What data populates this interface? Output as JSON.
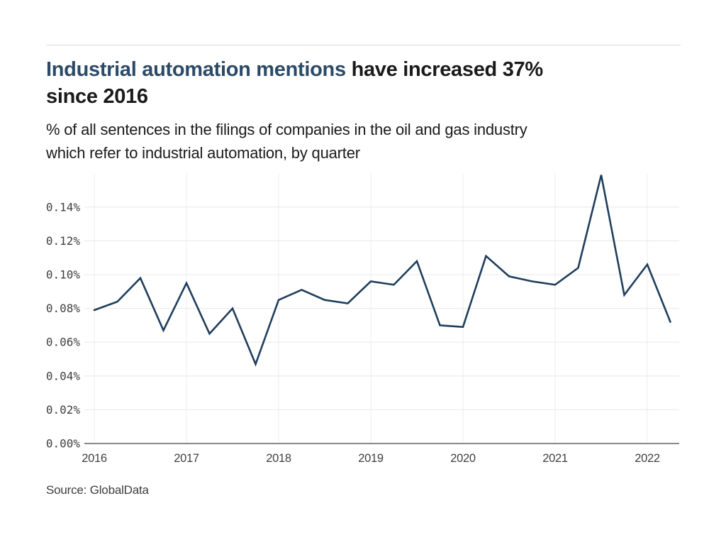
{
  "page": {
    "heading": {
      "highlight": "Industrial automation mentions",
      "line1_rest": " have increased 37%",
      "line2": "since 2016"
    },
    "subtitle_line1": "% of all sentences in the filings of companies in the oil and gas industry",
    "subtitle_line2": "which refer to industrial automation, by quarter",
    "source": "Source: GlobalData"
  },
  "colors": {
    "accent_navy": "#2b4a67",
    "text_dark": "#1a1a1a",
    "line": "#1f3e5c",
    "tick_text": "#3f3f3f",
    "gridline_h": "#e8e8e8",
    "gridline_v": "#ececec",
    "axis_line": "#8a8a8a",
    "top_rule": "#dadada"
  },
  "chart_data": {
    "type": "line",
    "title": "Industrial automation mentions have increased 37% since 2016",
    "subtitle": "% of all sentences in the filings of companies in the oil and gas industry which refer to industrial automation, by quarter",
    "xlabel": "",
    "ylabel": "% of all sentences",
    "x": [
      "Q1 2016",
      "Q2 2016",
      "Q3 2016",
      "Q4 2016",
      "Q1 2017",
      "Q2 2017",
      "Q3 2017",
      "Q4 2017",
      "Q1 2018",
      "Q2 2018",
      "Q3 2018",
      "Q4 2018",
      "Q1 2019",
      "Q2 2019",
      "Q3 2019",
      "Q4 2019",
      "Q1 2020",
      "Q2 2020",
      "Q3 2020",
      "Q4 2020",
      "Q1 2021",
      "Q2 2021",
      "Q3 2021",
      "Q4 2021",
      "Q1 2022",
      "Q2 2022"
    ],
    "values": [
      0.079,
      0.084,
      0.098,
      0.067,
      0.095,
      0.065,
      0.08,
      0.047,
      0.085,
      0.091,
      0.085,
      0.083,
      0.096,
      0.094,
      0.108,
      0.07,
      0.069,
      0.111,
      0.099,
      0.096,
      0.094,
      0.104,
      0.159,
      0.088,
      0.106,
      0.072
    ],
    "x_tick_labels": [
      "2016",
      "2017",
      "2018",
      "2019",
      "2020",
      "2021",
      "2022"
    ],
    "y_tick_labels": [
      "0.00%",
      "0.02%",
      "0.04%",
      "0.06%",
      "0.08%",
      "0.10%",
      "0.12%",
      "0.14%"
    ],
    "y_tick_values": [
      0.0,
      0.02,
      0.04,
      0.06,
      0.08,
      0.1,
      0.12,
      0.14
    ],
    "ylim": [
      0,
      0.16
    ],
    "grid": true,
    "legend": "none",
    "source": "Source: GlobalData"
  }
}
